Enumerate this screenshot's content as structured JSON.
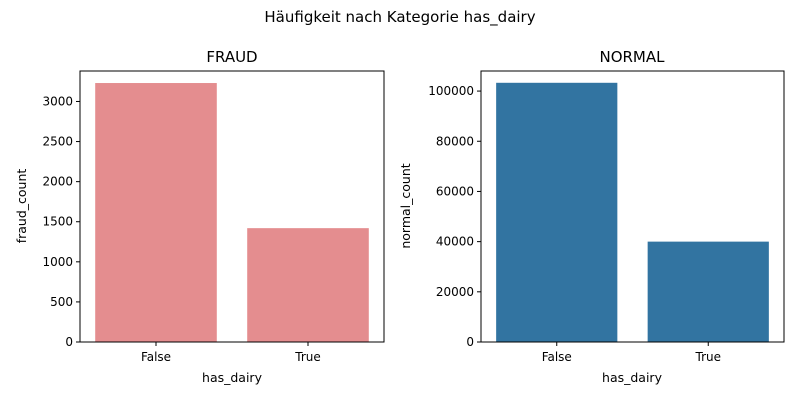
{
  "figure": {
    "suptitle": "Häufigkeit nach Kategorie has_dairy"
  },
  "chart_data": [
    {
      "type": "bar",
      "title": "FRAUD",
      "xlabel": "has_dairy",
      "ylabel": "fraud_count",
      "categories": [
        "False",
        "True"
      ],
      "values": [
        3230,
        1420
      ],
      "ylim": [
        0,
        3380
      ],
      "yticks": [
        0,
        500,
        1000,
        1500,
        2000,
        2500,
        3000
      ],
      "ytick_labels": [
        "0",
        "500",
        "1000",
        "1500",
        "2000",
        "2500",
        "3000"
      ],
      "color": "#e48d8f",
      "grid": false
    },
    {
      "type": "bar",
      "title": "NORMAL",
      "xlabel": "has_dairy",
      "ylabel": "normal_count",
      "categories": [
        "False",
        "True"
      ],
      "values": [
        103300,
        40000
      ],
      "ylim": [
        0,
        108000
      ],
      "yticks": [
        0,
        20000,
        40000,
        60000,
        80000,
        100000
      ],
      "ytick_labels": [
        "0",
        "20000",
        "40000",
        "60000",
        "80000",
        "100000"
      ],
      "color": "#3274a1",
      "grid": false
    }
  ]
}
